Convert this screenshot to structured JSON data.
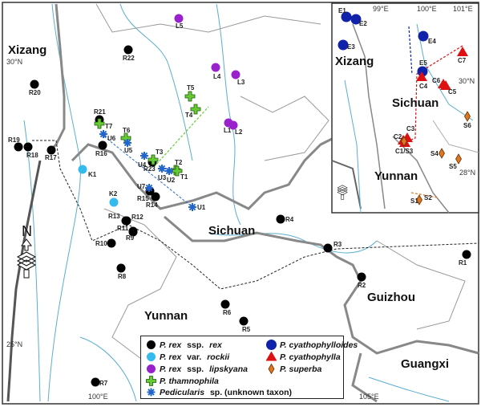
{
  "main_map": {
    "regions": [
      {
        "name": "Xizang",
        "key": "xizang"
      },
      {
        "name": "Sichuan",
        "key": "sichuan"
      },
      {
        "name": "Yunnan",
        "key": "yunnan"
      },
      {
        "name": "Guizhou",
        "key": "guizhou"
      },
      {
        "name": "Guangxi",
        "key": "guangxi"
      }
    ],
    "coords": [
      "30°N",
      "25°N",
      "100°E",
      "105°E"
    ],
    "markers": [
      {
        "label": "L5",
        "type": "lipskyana"
      },
      {
        "label": "L4",
        "type": "lipskyana"
      },
      {
        "label": "L3",
        "type": "lipskyana"
      },
      {
        "label": "L1",
        "type": "lipskyana"
      },
      {
        "label": "L2",
        "type": "lipskyana"
      },
      {
        "label": "R22",
        "type": "rex"
      },
      {
        "label": "R20",
        "type": "rex"
      },
      {
        "label": "R21",
        "type": "rex"
      },
      {
        "label": "R16",
        "type": "rex"
      },
      {
        "label": "R19",
        "type": "rex"
      },
      {
        "label": "R18",
        "type": "rex"
      },
      {
        "label": "R17",
        "type": "rex"
      },
      {
        "label": "R23",
        "type": "rex"
      },
      {
        "label": "R15",
        "type": "rex"
      },
      {
        "label": "R14",
        "type": "rex"
      },
      {
        "label": "R13",
        "type": "rex"
      },
      {
        "label": "R12",
        "type": "rex"
      },
      {
        "label": "R11",
        "type": "rex"
      },
      {
        "label": "R9",
        "type": "rex"
      },
      {
        "label": "R10",
        "type": "rex"
      },
      {
        "label": "R8",
        "type": "rex"
      },
      {
        "label": "R6",
        "type": "rex"
      },
      {
        "label": "R5",
        "type": "rex"
      },
      {
        "label": "R7",
        "type": "rex"
      },
      {
        "label": "R4",
        "type": "rex"
      },
      {
        "label": "R3",
        "type": "rex"
      },
      {
        "label": "R2",
        "type": "rex"
      },
      {
        "label": "R1",
        "type": "rex"
      },
      {
        "label": "K1",
        "type": "rockii"
      },
      {
        "label": "K2",
        "type": "rockii"
      },
      {
        "label": "T5",
        "type": "thamnophila"
      },
      {
        "label": "T4",
        "type": "thamnophila"
      },
      {
        "label": "T7",
        "type": "thamnophila"
      },
      {
        "label": "T6",
        "type": "thamnophila"
      },
      {
        "label": "T3",
        "type": "thamnophila"
      },
      {
        "label": "T2",
        "type": "thamnophila"
      },
      {
        "label": "T1",
        "type": "thamnophila"
      },
      {
        "label": "U6",
        "type": "unknown"
      },
      {
        "label": "U5",
        "type": "unknown"
      },
      {
        "label": "U4",
        "type": "unknown"
      },
      {
        "label": "U3",
        "type": "unknown"
      },
      {
        "label": "U2",
        "type": "unknown"
      },
      {
        "label": "U7",
        "type": "unknown"
      },
      {
        "label": "U1",
        "type": "unknown"
      }
    ]
  },
  "inset_map": {
    "regions": [
      {
        "name": "Xizang",
        "key": "xizang"
      },
      {
        "name": "Sichuan",
        "key": "sichuan"
      },
      {
        "name": "Yunnan",
        "key": "yunnan"
      }
    ],
    "coords": [
      "99°E",
      "100°E",
      "101°E",
      "30°N",
      "28°N"
    ],
    "markers": [
      {
        "label": "E1",
        "type": "cyathophylloides"
      },
      {
        "label": "E2",
        "type": "cyathophylloides"
      },
      {
        "label": "E3",
        "type": "cyathophylloides"
      },
      {
        "label": "E4",
        "type": "cyathophylloides"
      },
      {
        "label": "E5",
        "type": "cyathophylloides"
      },
      {
        "label": "C4",
        "type": "cyathophylla"
      },
      {
        "label": "C7",
        "type": "cyathophylla"
      },
      {
        "label": "C6",
        "type": "cyathophylla"
      },
      {
        "label": "C5",
        "type": "cyathophylla"
      },
      {
        "label": "C3",
        "type": "cyathophylla"
      },
      {
        "label": "C2",
        "type": "cyathophylla"
      },
      {
        "label": "C1/S3",
        "type": "cyathophylla"
      },
      {
        "label": "S6",
        "type": "superba"
      },
      {
        "label": "S4",
        "type": "superba"
      },
      {
        "label": "S5",
        "type": "superba"
      },
      {
        "label": "S1",
        "type": "superba"
      },
      {
        "label": "S2",
        "type": "superba"
      }
    ]
  },
  "north_arrow": "N",
  "legend": [
    {
      "type": "rex",
      "italic": "P. rex",
      "normal": " ssp. ",
      "italic2": "rex"
    },
    {
      "type": "rockii",
      "italic": "P. rex",
      "normal": " var. ",
      "italic2": "rockii"
    },
    {
      "type": "lipskyana",
      "italic": "P. rex",
      "normal": " ssp. ",
      "italic2": "lipskyana"
    },
    {
      "type": "thamnophila",
      "italic": "P. thamnophila",
      "normal": "",
      "italic2": ""
    },
    {
      "type": "unknown",
      "italic": "Pedicularis",
      "normal": " sp. (unknown taxon)",
      "italic2": ""
    },
    {
      "type": "cyathophylloides",
      "italic": "P. cyathophylloides",
      "normal": "",
      "italic2": ""
    },
    {
      "type": "cyathophylla",
      "italic": "P. cyathophylla",
      "normal": "",
      "italic2": ""
    },
    {
      "type": "superba",
      "italic": "P. superba",
      "normal": "",
      "italic2": ""
    }
  ],
  "colors": {
    "rex": "#000000",
    "rockii": "#33bbee",
    "lipskyana": "#9922cc",
    "thamnophila": "#66cc33",
    "unknown": "#2266cc",
    "cyathophylloides": "#1122aa",
    "cyathophylla": "#dd1111",
    "superba": "#dd7722",
    "river": "#5aaed0",
    "border": "#777777"
  }
}
